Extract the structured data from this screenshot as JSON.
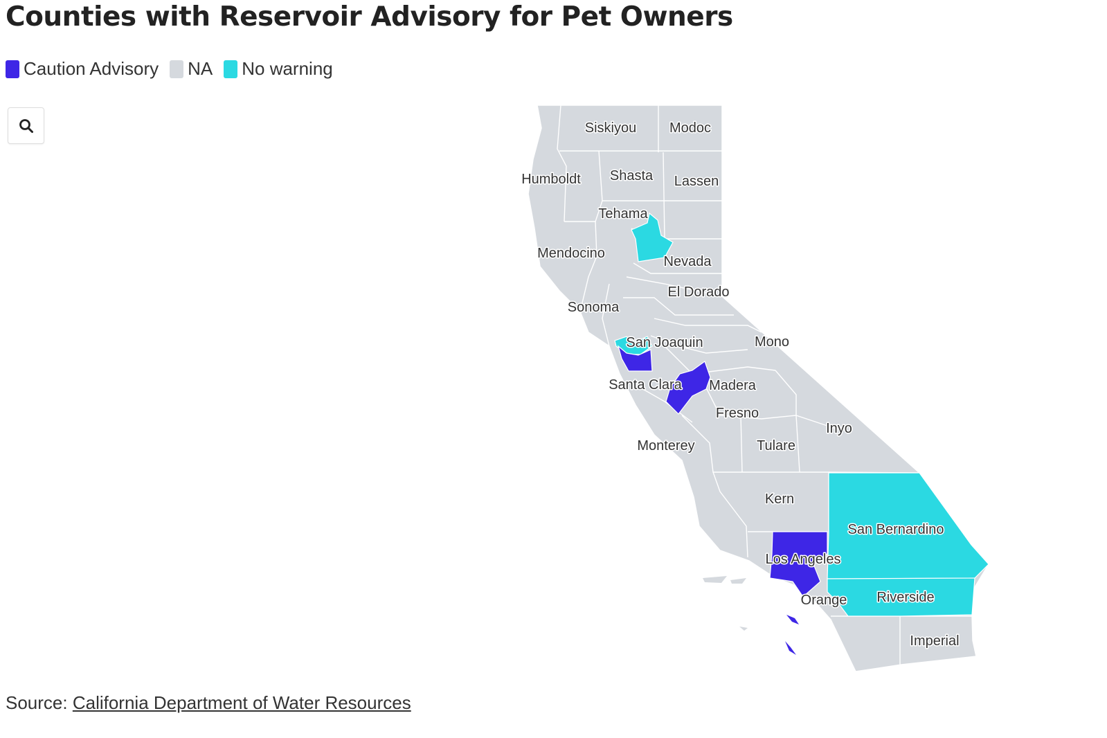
{
  "title": "Counties with Reservoir Advisory for Pet Owners",
  "legend": [
    {
      "label": "Caution Advisory",
      "color": "#3e26e6"
    },
    {
      "label": "NA",
      "color": "#d5d9de"
    },
    {
      "label": "No warning",
      "color": "#2bd9e2"
    }
  ],
  "search": {
    "icon": "search-icon"
  },
  "map": {
    "region": "California",
    "base_color": "#d5d9de",
    "border_color": "#ffffff",
    "counties": [
      {
        "name": "Siskiyou",
        "status": "NA"
      },
      {
        "name": "Modoc",
        "status": "NA"
      },
      {
        "name": "Humboldt",
        "status": "NA"
      },
      {
        "name": "Shasta",
        "status": "NA"
      },
      {
        "name": "Lassen",
        "status": "NA"
      },
      {
        "name": "Tehama",
        "status": "NA"
      },
      {
        "name": "Mendocino",
        "status": "NA"
      },
      {
        "name": "Nevada",
        "status": "NA"
      },
      {
        "name": "El Dorado",
        "status": "NA"
      },
      {
        "name": "Sonoma",
        "status": "NA"
      },
      {
        "name": "San Joaquin",
        "status": "NA"
      },
      {
        "name": "Mono",
        "status": "NA"
      },
      {
        "name": "Santa Clara",
        "status": "Caution Advisory"
      },
      {
        "name": "Madera",
        "status": "Caution Advisory"
      },
      {
        "name": "Fresno",
        "status": "NA"
      },
      {
        "name": "Inyo",
        "status": "NA"
      },
      {
        "name": "Monterey",
        "status": "NA"
      },
      {
        "name": "Tulare",
        "status": "NA"
      },
      {
        "name": "Kern",
        "status": "NA"
      },
      {
        "name": "San Bernardino",
        "status": "No warning"
      },
      {
        "name": "Los Angeles",
        "status": "Caution Advisory"
      },
      {
        "name": "Orange",
        "status": "NA"
      },
      {
        "name": "Riverside",
        "status": "No warning"
      },
      {
        "name": "Imperial",
        "status": "NA"
      }
    ]
  },
  "source": {
    "prefix": "Source: ",
    "link_text": "California Department of Water Resources"
  }
}
